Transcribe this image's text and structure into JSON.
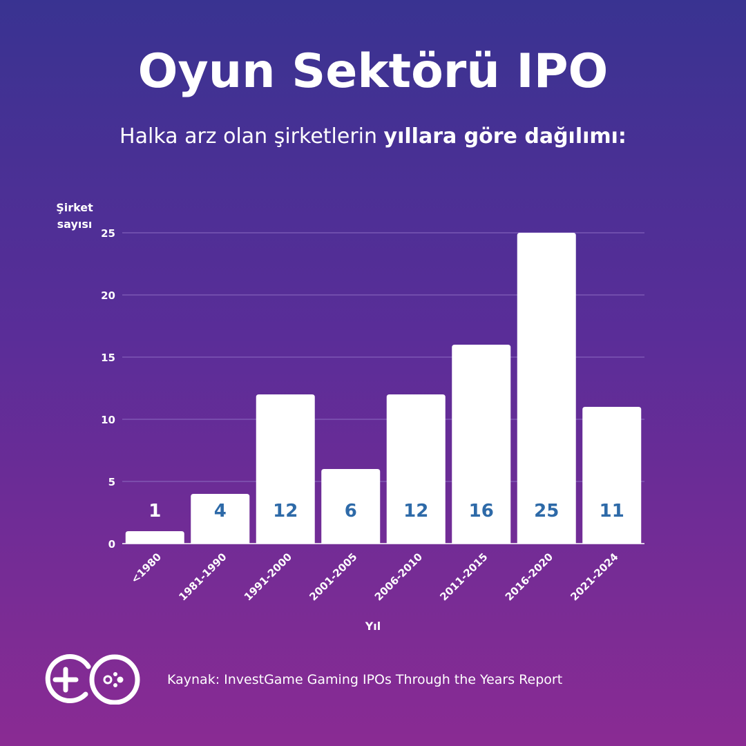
{
  "title": "Oyun Sektörü IPO",
  "subtitle": {
    "normal": "Halka arz olan şirketlerin ",
    "bold": "yıllara göre dağılımı:"
  },
  "source": "Kaynak: InvestGame Gaming IPOs Through the Years Report",
  "colors": {
    "bar": "#ffffff",
    "value_label_inside": "#2e6aa8",
    "value_label_outside": "#ffffff",
    "gridline": "#8d6cc2"
  },
  "chart_data": {
    "type": "bar",
    "categories": [
      "<1980",
      "1981-1990",
      "1991-2000",
      "2001-2005",
      "2006-2010",
      "2011-2015",
      "2016-2020",
      "2021-2024"
    ],
    "values": [
      1,
      4,
      12,
      6,
      12,
      16,
      25,
      11
    ],
    "value_labels": [
      "1",
      "4",
      "12",
      "6",
      "12",
      "16",
      "25",
      "11"
    ],
    "ylabel_lines": [
      "Şirket",
      "sayısı"
    ],
    "xlabel": "Yıl",
    "yticks": [
      "0",
      "5",
      "10",
      "15",
      "20",
      "25"
    ],
    "ylim": [
      0,
      25
    ],
    "grid": true
  }
}
